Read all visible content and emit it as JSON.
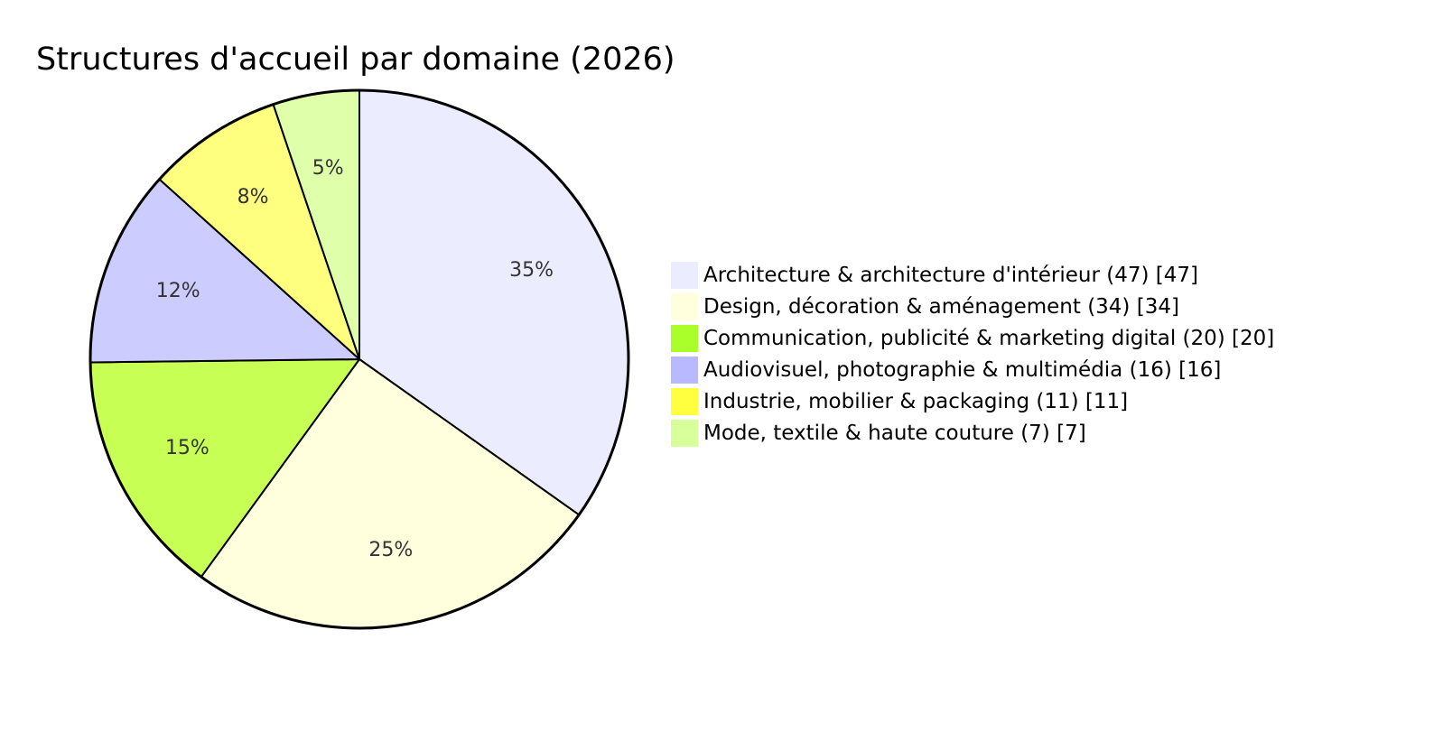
{
  "chart_data": {
    "type": "pie",
    "title": "Structures d'accueil par domaine (2026)",
    "slices": [
      {
        "label": "Architecture & architecture d'intérieur (47) [47]",
        "value": 47,
        "percent_label": "35%",
        "color": "#ECECFF"
      },
      {
        "label": "Design, décoration & aménagement (34) [34]",
        "value": 34,
        "percent_label": "25%",
        "color": "#FFFFDE"
      },
      {
        "label": "Communication, publicité & marketing digital (20) [20]",
        "value": 20,
        "percent_label": "15%",
        "color": "#C8FF55"
      },
      {
        "label": "Audiovisuel, photographie & multimédia (16) [16]",
        "value": 16,
        "percent_label": "12%",
        "color": "#CCCCFF"
      },
      {
        "label": "Industrie, mobilier & packaging (11) [11]",
        "value": 11,
        "percent_label": "8%",
        "color": "#FFFF7F"
      },
      {
        "label": "Mode, textile & haute couture (7) [7]",
        "value": 7,
        "percent_label": "5%",
        "color": "#E0FFAA"
      }
    ],
    "legend": {
      "placement": "right",
      "swatch_colors": [
        "#ECECFF",
        "#FFFFDE",
        "#AAFF2A",
        "#B9B9FF",
        "#FFFF3F",
        "#D7FF9A"
      ]
    }
  }
}
